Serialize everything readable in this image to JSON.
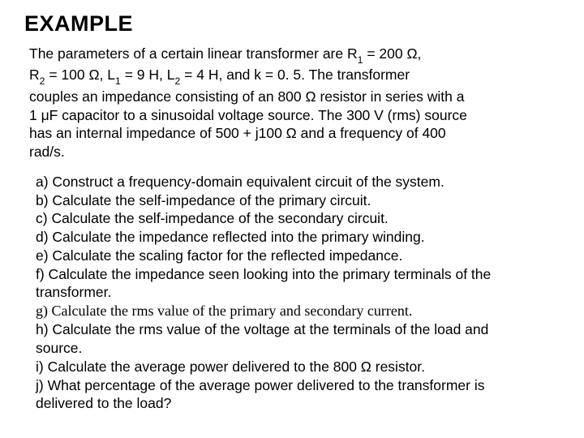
{
  "title": "EXAMPLE",
  "intro_l1": "The parameters of a certain linear transformer are R",
  "intro_sub1": "1",
  "intro_l1b": " = 200 Ω,",
  "intro_l2a": "R",
  "intro_sub2": "2",
  "intro_l2b": " = 100 Ω, L",
  "intro_sub3": "1",
  "intro_l2c": " = 9 H, L",
  "intro_sub4": "2",
  "intro_l2d": " = 4 H, and k = 0. 5. The transformer",
  "intro_l3": "couples an impedance consisting of an 800 Ω resistor in series with a",
  "intro_l4": "1 μF capacitor to a sinusoidal voltage source. The 300 V (rms) source",
  "intro_l5": "has an internal impedance of 500 + j100 Ω and a frequency of 400",
  "intro_l6": "rad/s.",
  "qa": "a) Construct a frequency-domain equivalent circuit of the system.",
  "qb": "b) Calculate the self-impedance of the primary circuit.",
  "qc": "c) Calculate the self-impedance of the secondary circuit.",
  "qd": "d) Calculate the impedance reflected into the primary winding.",
  "qe": "e) Calculate the scaling factor for the reflected impedance.",
  "qf": "f) Calculate the impedance seen looking into the primary terminals of the",
  "qf2": "transformer.",
  "qg": "g) Calculate the rms value of the primary and secondary current.",
  "qh": "h) Calculate the rms value of the voltage at the terminals of the load and",
  "qh2": "source.",
  "qi": "i) Calculate the average power delivered to the 800 Ω resistor.",
  "qj": "j) What percentage of the average power delivered to the transformer is",
  "qj2": "delivered to the load?"
}
